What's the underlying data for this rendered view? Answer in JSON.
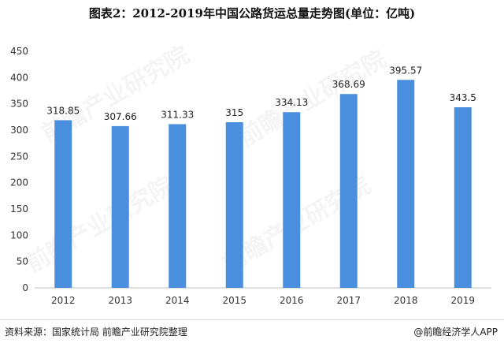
{
  "chart_data": {
    "type": "bar",
    "title": "图表2：2012-2019年中国公路货运总量走势图(单位：亿吨)",
    "categories": [
      "2012",
      "2013",
      "2014",
      "2015",
      "2016",
      "2017",
      "2018",
      "2019"
    ],
    "values": [
      318.85,
      307.66,
      311.33,
      315,
      334.13,
      368.69,
      395.57,
      343.5
    ],
    "data_labels": [
      "318.85",
      "307.66",
      "311.33",
      "315",
      "334.13",
      "368.69",
      "395.57",
      "343.5"
    ],
    "ylim": [
      0,
      450
    ],
    "yticks": [
      0,
      50,
      100,
      150,
      200,
      250,
      300,
      350,
      400,
      450
    ],
    "xlabel": "",
    "ylabel": "",
    "grid": false,
    "legend": "none",
    "bar_color": "#4a8ede"
  },
  "footer": {
    "source": "资料来源：国家统计局 前瞻产业研究院整理",
    "credit": "@前瞻经济学人APP"
  },
  "watermark": {
    "text": "前瞻产业研究院"
  }
}
